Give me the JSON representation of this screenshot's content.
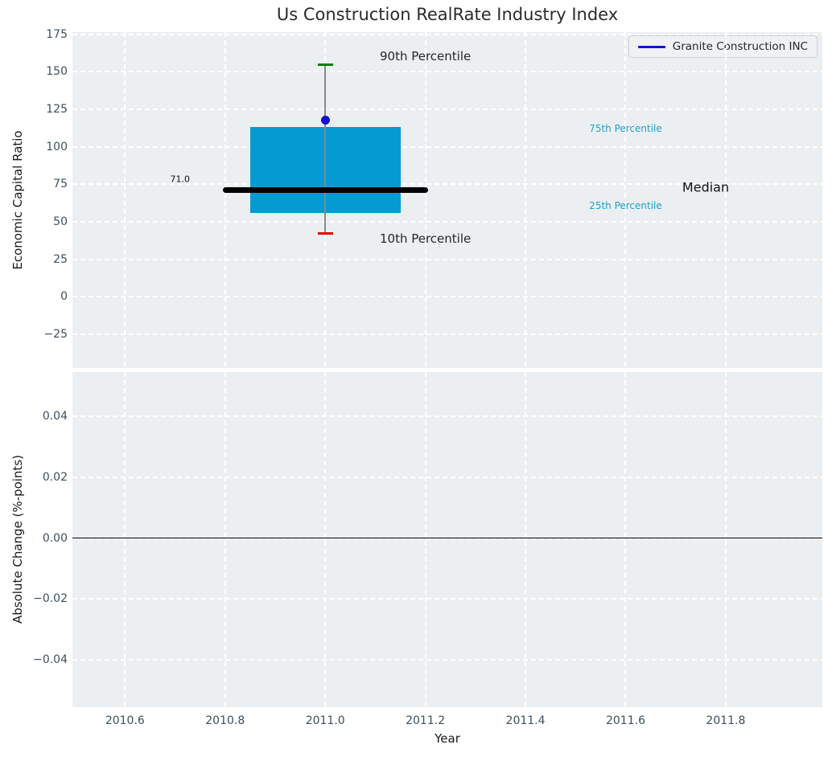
{
  "chart_data": {
    "type": "boxplot",
    "title": "Us Construction RealRate Industry Index",
    "legend": {
      "label": "Granite Construction INC",
      "line_color": "#1313d2"
    },
    "x": {
      "label": "Year",
      "lim": [
        2010.495,
        2011.993
      ],
      "tick_values": [
        2010.6,
        2010.8,
        2011.0,
        2011.2,
        2011.4,
        2011.6,
        2011.8
      ],
      "tick_labels": [
        "2010.6",
        "2010.8",
        "2011.0",
        "2011.2",
        "2011.4",
        "2011.6",
        "2011.8"
      ]
    },
    "panels": [
      {
        "ylabel": "Economic Capital Ratio",
        "ylim": [
          -47.5,
          176.5
        ],
        "tick_values": [
          175,
          150,
          125,
          100,
          75,
          50,
          25,
          0,
          -25
        ],
        "tick_labels": [
          "175",
          "150",
          "125",
          "100",
          "75",
          "50",
          "25",
          "0",
          "−25"
        ],
        "grid": true,
        "boxplot": {
          "x_center": 2011.0,
          "box_half_width": 0.15,
          "median_half_width": 0.205,
          "cap_half_width": 0.015,
          "p10": 42,
          "p25": 56,
          "median": 71,
          "p75": 113,
          "p90": 155,
          "company_point": {
            "x": 2011.0,
            "y": 118
          }
        },
        "annotations": [
          {
            "text": "90th Percentile",
            "x": 2011.2,
            "y": 160.5,
            "color": "#262626",
            "size": 15
          },
          {
            "text": "10th Percentile",
            "x": 2011.2,
            "y": 39.0,
            "color": "#262626",
            "size": 15
          },
          {
            "text": "75th Percentile",
            "x": 2011.6,
            "y": 112.0,
            "color": "#1ba3c9",
            "size": 12
          },
          {
            "text": "25th Percentile",
            "x": 2011.6,
            "y": 60.5,
            "color": "#1ba3c9",
            "size": 12
          },
          {
            "text": "Median",
            "x": 2011.76,
            "y": 73.0,
            "color": "#111111",
            "size": 16
          },
          {
            "text": "71.0",
            "x": 2010.71,
            "y": 78.5,
            "color": "#111111",
            "size": 11
          }
        ],
        "colors": {
          "box": "#059bd2",
          "median": "#000000",
          "whisker": "#888888",
          "cap_high": "#008000",
          "cap_low": "#e60000",
          "point": "#1313d2"
        }
      },
      {
        "ylabel": "Absolute Change (%-points)",
        "ylim": [
          -0.0555,
          0.0545
        ],
        "tick_values": [
          0.04,
          0.02,
          0,
          -0.02,
          -0.04
        ],
        "tick_labels": [
          "0.04",
          "0.02",
          "0.00",
          "−0.02",
          "−0.04"
        ],
        "grid": true,
        "zero_line": 0
      }
    ]
  }
}
